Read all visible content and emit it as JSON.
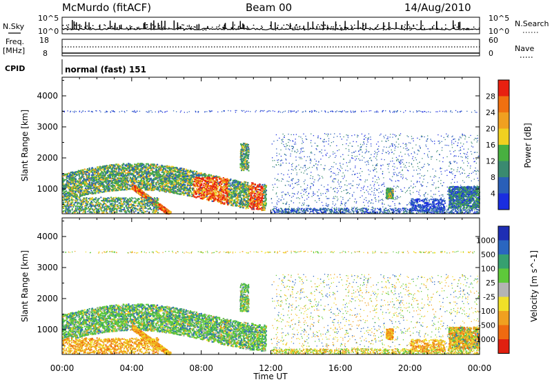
{
  "header": {
    "station": "McMurdo (fitACF)",
    "beam": "Beam 00",
    "date": "14/Aug/2010"
  },
  "noise_panel": {
    "left_label": "N.Sky",
    "right_label": "N.Search",
    "left_ticks": [
      "10^5",
      "10^0"
    ],
    "right_ticks": [
      "10^5",
      "10^0"
    ]
  },
  "freq_panel": {
    "left_label_1": "Freq.",
    "left_label_2": "[MHz]",
    "right_label": "Nave",
    "left_ticks": [
      "18",
      "8"
    ],
    "right_ticks": [
      "60",
      "0"
    ]
  },
  "cpid": {
    "label": "CPID",
    "value": "normal (fast) 151"
  },
  "x_axis": {
    "label": "Time UT",
    "ticks": [
      "00:00",
      "04:00",
      "08:00",
      "12:00",
      "16:00",
      "20:00",
      "00:00"
    ]
  },
  "colors": {
    "power": [
      "#1a2de0",
      "#2a5fb8",
      "#3a8a70",
      "#48b040",
      "#f0d020",
      "#f0a020",
      "#f07010",
      "#e82010"
    ],
    "velocity": [
      "#1e2eb4",
      "#2a66c0",
      "#36a070",
      "#5ec83a",
      "#b4b4b4",
      "#f0e028",
      "#f0a020",
      "#ef6a10",
      "#e02010"
    ]
  },
  "chart_data": [
    {
      "type": "heatmap",
      "title": "",
      "ylabel": "Slant Range [km]",
      "xlabel": "",
      "x_ticks": [
        "00:00",
        "04:00",
        "08:00",
        "12:00",
        "16:00",
        "20:00",
        "00:00"
      ],
      "y_ticks": [
        1000,
        2000,
        3000,
        4000
      ],
      "ylim": [
        200,
        4600
      ],
      "xlim_hours": [
        0,
        24
      ],
      "colorbar": {
        "label": "Power [dB]",
        "ticks": [
          "4",
          "8",
          "12",
          "16",
          "20",
          "24",
          "28"
        ]
      }
    },
    {
      "type": "heatmap",
      "title": "",
      "ylabel": "Slant Range [km]",
      "xlabel": "Time UT",
      "x_ticks": [
        "00:00",
        "04:00",
        "08:00",
        "12:00",
        "16:00",
        "20:00",
        "00:00"
      ],
      "y_ticks": [
        1000,
        2000,
        3000,
        4000
      ],
      "ylim": [
        200,
        4600
      ],
      "xlim_hours": [
        0,
        24
      ],
      "colorbar": {
        "label": "Velocity [m s^-1]",
        "ticks": [
          "1000",
          "500",
          "100",
          "25",
          "-25",
          "-100",
          "-500",
          "-1000"
        ]
      }
    }
  ]
}
